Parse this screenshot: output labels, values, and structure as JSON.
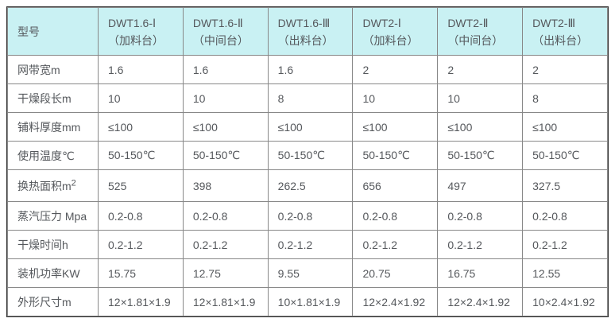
{
  "colors": {
    "header_bg": "#c9f1f3",
    "inner_border": "#888888",
    "outer_border": "#2f2f2f",
    "text": "#55585c"
  },
  "chart_data": {
    "type": "table",
    "header_label": "型号",
    "columns": [
      {
        "model": "DWT1.6-Ⅰ",
        "station": "（加料台）"
      },
      {
        "model": "DWT1.6-Ⅱ",
        "station": "（中间台）"
      },
      {
        "model": "DWT1.6-Ⅲ",
        "station": "（出料台）"
      },
      {
        "model": "DWT2-Ⅰ",
        "station": "（加料台）"
      },
      {
        "model": "DWT2-Ⅱ",
        "station": "（中间台）"
      },
      {
        "model": "DWT2-Ⅲ",
        "station": "（出料台）"
      }
    ],
    "rows": [
      {
        "label": "网带宽m",
        "label_sup": "",
        "values": [
          "1.6",
          "1.6",
          "1.6",
          "2",
          "2",
          "2"
        ]
      },
      {
        "label": "干燥段长m",
        "label_sup": "",
        "values": [
          "10",
          "10",
          "8",
          "10",
          "10",
          "8"
        ]
      },
      {
        "label": "铺料厚度mm",
        "label_sup": "",
        "values": [
          "≤100",
          "≤100",
          "≤100",
          "≤100",
          "≤100",
          "≤100"
        ]
      },
      {
        "label": "使用温度℃",
        "label_sup": "",
        "values": [
          "50-150℃",
          "50-150℃",
          "50-150℃",
          "50-150℃",
          "50-150℃",
          "50-150℃"
        ]
      },
      {
        "label": "换热面积m",
        "label_sup": "2",
        "values": [
          "525",
          "398",
          "262.5",
          "656",
          "497",
          "327.5"
        ]
      },
      {
        "label": "蒸汽压力 Mpa",
        "label_sup": "",
        "values": [
          "0.2-0.8",
          "0.2-0.8",
          "0.2-0.8",
          "0.2-0.8",
          "0.2-0.8",
          "0.2-0.8"
        ]
      },
      {
        "label": "干燥时间h",
        "label_sup": "",
        "values": [
          "0.2-1.2",
          "0.2-1.2",
          "0.2-1.2",
          "0.2-1.2",
          "0.2-1.2",
          "0.2-1.2"
        ]
      },
      {
        "label": "装机功率KW",
        "label_sup": "",
        "values": [
          "15.75",
          "12.75",
          "9.55",
          "20.75",
          "16.75",
          "12.55"
        ]
      },
      {
        "label": "外形尺寸m",
        "label_sup": "",
        "values": [
          "12×1.81×1.9",
          "12×1.81×1.9",
          "10×1.81×1.9",
          "12×2.4×1.92",
          "12×2.4×1.92",
          "10×2.4×1.92"
        ]
      }
    ]
  }
}
